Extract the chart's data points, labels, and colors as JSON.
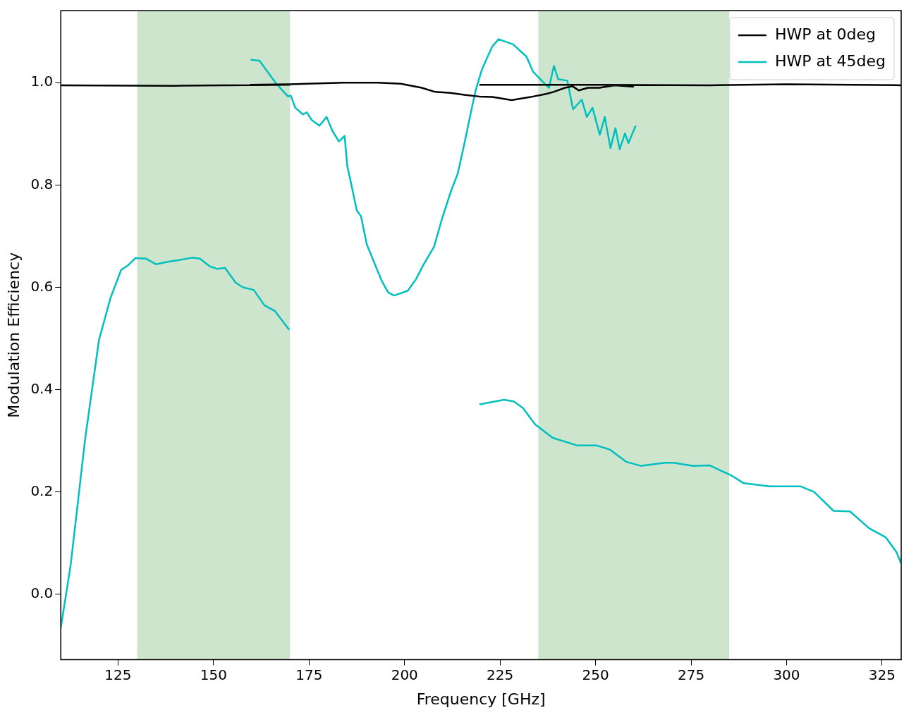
{
  "chart_data": {
    "type": "line",
    "xlabel": "Frequency [GHz]",
    "ylabel": "Modulation Efficiency",
    "xlim": [
      110,
      330
    ],
    "xticks": [
      125,
      150,
      175,
      200,
      225,
      250,
      275,
      300,
      325
    ],
    "ylim": [
      -0.128,
      1.141
    ],
    "yticks": [
      {
        "value": 0,
        "label": "0.0"
      },
      {
        "value": 0.2,
        "label": "0.2"
      },
      {
        "value": 0.4,
        "label": "0.4"
      },
      {
        "value": 0.6,
        "label": "0.6"
      },
      {
        "value": 0.8,
        "label": "0.8"
      },
      {
        "value": 1,
        "label": "1.0"
      }
    ],
    "grid": false,
    "legend": "top right",
    "marker": "none",
    "line_style": "solid",
    "bands": [
      {
        "axis": "x",
        "from": 130,
        "to": 170,
        "color": "#cde5cd"
      },
      {
        "axis": "x",
        "from": 235,
        "to": 285,
        "color": "#cde5cd"
      }
    ],
    "series": [
      {
        "name": "HWP at 0deg",
        "color": "#000000",
        "x": [
          110,
          140,
          170,
          null,
          159.5,
          170,
          174.5,
          184,
          193,
          199,
          204.5,
          208,
          212,
          216,
          219.6,
          223,
          228,
          233,
          237,
          239,
          242,
          244,
          245.6,
          248,
          251,
          255,
          260,
          null,
          219.6,
          250,
          280,
          300,
          330
        ],
        "values": [
          0.995,
          0.994,
          0.996,
          null,
          0.996,
          0.997,
          0.998,
          1.0,
          1.0,
          0.998,
          0.99,
          0.982,
          0.98,
          0.976,
          0.973,
          0.972,
          0.966,
          0.972,
          0.978,
          0.982,
          0.99,
          0.993,
          0.985,
          0.99,
          0.99,
          0.995,
          0.992,
          null,
          0.996,
          0.996,
          0.995,
          0.997,
          0.995
        ]
      },
      {
        "name": "HWP at 45deg",
        "color": "#00bfbf",
        "x": [
          110,
          112.6,
          116.4,
          120,
          123,
          125.8,
          127.6,
          129.5,
          132.3,
          135,
          138,
          140.8,
          144.5,
          146.4,
          149,
          151,
          153,
          155.8,
          157.7,
          160.5,
          163.3,
          166,
          169.8,
          null,
          159.7,
          162,
          166.3,
          169.5,
          170.2,
          171.4,
          173.4,
          174.4,
          175.7,
          177.7,
          179.6,
          181.1,
          182.8,
          184.3,
          185,
          185.8,
          187.5,
          188.6,
          190.1,
          191.8,
          194,
          195.7,
          197.2,
          200.8,
          203,
          205,
          207.7,
          209.8,
          212,
          213.9,
          215.6,
          217.1,
          218.6,
          220.3,
          222.9,
          224.6,
          228.4,
          231.9,
          233.6,
          235.9,
          237.8,
          239.1,
          240.2,
          242.6,
          244.1,
          246.4,
          247.7,
          249.2,
          251.1,
          252.4,
          253.9,
          255.2,
          256.3,
          257.7,
          258.6,
          260.5,
          null,
          219.6,
          226,
          228.6,
          231,
          234.2,
          238.7,
          245.1,
          250.2,
          253.7,
          258,
          261.8,
          268.2,
          270.4,
          275.5,
          279.8,
          285.6,
          288.8,
          295.6,
          303.6,
          307.2,
          312.3,
          316.6,
          321.6,
          326,
          328.8,
          330
        ],
        "values": [
          -0.066,
          0.058,
          0.305,
          0.497,
          0.579,
          0.634,
          0.643,
          0.657,
          0.656,
          0.645,
          0.65,
          0.653,
          0.658,
          0.656,
          0.641,
          0.636,
          0.638,
          0.609,
          0.6,
          0.595,
          0.565,
          0.554,
          0.517,
          null,
          1.045,
          1.043,
          0.999,
          0.973,
          0.975,
          0.951,
          0.938,
          0.942,
          0.927,
          0.916,
          0.933,
          0.906,
          0.885,
          0.896,
          0.837,
          0.81,
          0.75,
          0.739,
          0.684,
          0.653,
          0.613,
          0.59,
          0.584,
          0.593,
          0.616,
          0.645,
          0.679,
          0.734,
          0.785,
          0.822,
          0.879,
          0.933,
          0.985,
          1.027,
          1.07,
          1.085,
          1.075,
          1.051,
          1.022,
          1.004,
          0.99,
          1.033,
          1.007,
          1.004,
          0.948,
          0.967,
          0.933,
          0.951,
          0.898,
          0.933,
          0.872,
          0.911,
          0.87,
          0.901,
          0.882,
          0.916,
          null,
          0.371,
          0.38,
          0.377,
          0.364,
          0.332,
          0.306,
          0.291,
          0.291,
          0.283,
          0.259,
          0.251,
          0.257,
          0.257,
          0.251,
          0.252,
          0.232,
          0.217,
          0.211,
          0.211,
          0.2,
          0.163,
          0.162,
          0.129,
          0.111,
          0.082,
          0.06
        ]
      }
    ]
  }
}
